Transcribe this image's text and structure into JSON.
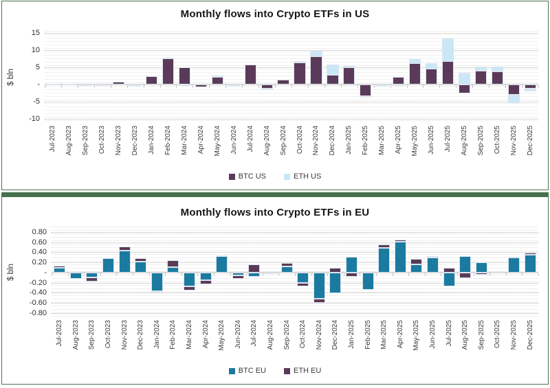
{
  "page": {
    "background": "#ffffff",
    "frame_color": "#47704e"
  },
  "chart_data": [
    {
      "type": "bar",
      "stacked": true,
      "title": "Monthly flows into Crypto ETFs in US",
      "xlabel": "",
      "ylabel": "$ bln",
      "grid": true,
      "legend_position": "bottom",
      "ylim": [
        -11.4,
        15.6
      ],
      "yticks": [
        15,
        10,
        5,
        0,
        -5,
        -10
      ],
      "ytick_labels": [
        "15",
        "10",
        "5",
        "-",
        "-5",
        "-10"
      ],
      "categories": [
        "Jul-2023",
        "Aug-2023",
        "Sep-2023",
        "Oct-2023",
        "Nov-2023",
        "Dec-2023",
        "Jan-2024",
        "Feb-2024",
        "Mar-2024",
        "Apr-2024",
        "May-2024",
        "Jun-2024",
        "Jul-2024",
        "Aug-2024",
        "Sep-2024",
        "Oct-2024",
        "Nov-2024",
        "Dec-2024",
        "Jan-2025",
        "Feb-2025",
        "Mar-2025",
        "Apr-2025",
        "May-2025",
        "Jun-2025",
        "Jul-2025",
        "Aug-2025",
        "Sep-2025",
        "Oct-2025",
        "Nov-2025",
        "Dec-2025"
      ],
      "series": [
        {
          "name": "BTC US",
          "color": "#5a3a58",
          "values": [
            0.3,
            0,
            0,
            -0.2,
            0.8,
            -0.1,
            2.4,
            7.6,
            5.1,
            -0.7,
            2.3,
            -0.1,
            5.9,
            -1.1,
            1.4,
            6.5,
            8.3,
            2.9,
            5.1,
            -3.3,
            -0.1,
            2.2,
            6.2,
            4.7,
            6.8,
            -2.5,
            4.1,
            3.8,
            -3.0,
            -1.2
          ]
        },
        {
          "name": "ETH US",
          "color": "#c9e7f7",
          "values": [
            0,
            0.3,
            -0.3,
            0,
            0,
            -0.2,
            0,
            0.3,
            -0.4,
            0,
            0.3,
            -0.2,
            0,
            -0.4,
            0,
            0.3,
            1.5,
            2.9,
            0.4,
            -0.3,
            -0.5,
            -0.3,
            1.2,
            1.5,
            6.7,
            3.5,
            1.2,
            1.5,
            -2.3,
            -0.8
          ]
        }
      ]
    },
    {
      "type": "bar",
      "stacked": true,
      "title": "Monthly flows into Crypto ETFs in EU",
      "xlabel": "",
      "ylabel": "$ bln",
      "grid": true,
      "legend_position": "bottom",
      "ylim": [
        -0.9,
        0.91
      ],
      "yticks": [
        0.8,
        0.6,
        0.4,
        0.2,
        0,
        -0.2,
        -0.4,
        -0.6,
        -0.8
      ],
      "ytick_labels": [
        "0.80",
        "0.60",
        "0.40",
        "0.20",
        "-",
        "-0.20",
        "-0.40",
        "-0.60",
        "-0.80"
      ],
      "categories": [
        "Jul-2023",
        "Aug-2023",
        "Sep-2023",
        "Oct-2023",
        "Nov-2023",
        "Dec-2023",
        "Jan-2024",
        "Feb-2024",
        "Mar-2024",
        "Apr-2024",
        "May-2024",
        "Jun-2024",
        "Jul-2024",
        "Aug-2024",
        "Sep-2024",
        "Oct-2024",
        "Nov-2024",
        "Dec-2024",
        "Jan-2025",
        "Feb-2025",
        "Mar-2025",
        "Apr-2025",
        "May-2025",
        "Jun-2025",
        "Jul-2025",
        "Aug-2025",
        "Sep-2025",
        "Oct-2025",
        "Nov-2025",
        "Dec-2025"
      ],
      "series": [
        {
          "name": "BTC EU",
          "color": "#1b7aa0",
          "values": [
            0.1,
            -0.12,
            -0.1,
            0.28,
            0.43,
            0.22,
            -0.37,
            0.11,
            -0.28,
            -0.15,
            0.32,
            -0.06,
            -0.08,
            0.0,
            0.12,
            -0.2,
            -0.52,
            -0.41,
            0.31,
            -0.34,
            0.49,
            0.61,
            0.16,
            0.3,
            -0.27,
            0.33,
            0.2,
            0.03,
            0.3,
            0.35
          ]
        },
        {
          "name": "ETH EU",
          "color": "#5a3a58",
          "values": [
            0.04,
            0.0,
            -0.08,
            0.0,
            0.09,
            0.06,
            -0.03,
            0.13,
            -0.08,
            -0.09,
            0.02,
            -0.06,
            0.16,
            -0.02,
            0.07,
            -0.07,
            -0.08,
            0.1,
            -0.08,
            0.0,
            0.06,
            0.04,
            0.11,
            0.02,
            0.1,
            -0.11,
            -0.04,
            0.0,
            0.01,
            0.04
          ]
        }
      ]
    }
  ]
}
